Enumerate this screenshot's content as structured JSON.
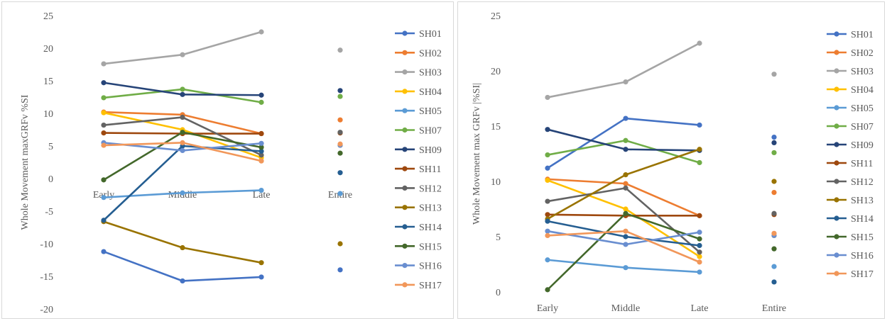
{
  "chart_data": [
    {
      "type": "line",
      "title": "",
      "ylabel": "Whole Movement maxGRFv %SI",
      "xlabel": "",
      "ylim": [
        -20,
        25
      ],
      "yticks": [
        25,
        20,
        15,
        10,
        5,
        0,
        -5,
        -10,
        -15,
        -20
      ],
      "categories": [
        "Early",
        "Middle",
        "Late",
        "Entire"
      ],
      "grid": false,
      "legend": "right",
      "series": [
        {
          "name": "SH01",
          "color": "#4472c4",
          "values": [
            -11.2,
            -15.7,
            -15.1,
            -14.0
          ]
        },
        {
          "name": "SH02",
          "color": "#ed7d31",
          "values": [
            10.2,
            9.8,
            6.9,
            9.0
          ]
        },
        {
          "name": "SH03",
          "color": "#a5a5a5",
          "values": [
            17.6,
            19.0,
            22.5,
            19.7
          ]
        },
        {
          "name": "SH04",
          "color": "#ffc000",
          "values": [
            10.1,
            7.5,
            3.2,
            5.1
          ]
        },
        {
          "name": "SH05",
          "color": "#5b9bd5",
          "values": [
            -2.9,
            -2.2,
            -1.8,
            -2.3
          ]
        },
        {
          "name": "SH07",
          "color": "#70ad47",
          "values": [
            12.4,
            13.7,
            11.7,
            12.6
          ]
        },
        {
          "name": "SH09",
          "color": "#264478",
          "values": [
            14.7,
            12.9,
            12.8,
            13.5
          ]
        },
        {
          "name": "SH11",
          "color": "#9e480e",
          "values": [
            7.0,
            6.9,
            6.9,
            7.0
          ]
        },
        {
          "name": "SH12",
          "color": "#636363",
          "values": [
            8.2,
            9.4,
            3.6,
            7.1
          ]
        },
        {
          "name": "SH13",
          "color": "#997300",
          "values": [
            -6.6,
            -10.6,
            -12.9,
            -10.0
          ]
        },
        {
          "name": "SH14",
          "color": "#255e91",
          "values": [
            -6.4,
            5.0,
            4.2,
            0.9
          ]
        },
        {
          "name": "SH15",
          "color": "#43682b",
          "values": [
            -0.2,
            7.1,
            4.8,
            3.9
          ]
        },
        {
          "name": "SH16",
          "color": "#698ed0",
          "values": [
            5.5,
            4.3,
            5.4,
            5.1
          ]
        },
        {
          "name": "SH17",
          "color": "#f1975a",
          "values": [
            5.1,
            5.5,
            2.7,
            5.3
          ]
        }
      ]
    },
    {
      "type": "line",
      "title": "",
      "ylabel": "Whole Movement max GRFv |%SI|",
      "xlabel": "",
      "ylim": [
        0,
        25
      ],
      "yticks": [
        25,
        20,
        15,
        10,
        5,
        0
      ],
      "categories": [
        "Early",
        "Middle",
        "Late",
        "Entire"
      ],
      "grid": false,
      "legend": "right",
      "series": [
        {
          "name": "SH01",
          "color": "#4472c4",
          "values": [
            11.2,
            15.7,
            15.1,
            14.0
          ]
        },
        {
          "name": "SH02",
          "color": "#ed7d31",
          "values": [
            10.2,
            9.8,
            6.9,
            9.0
          ]
        },
        {
          "name": "SH03",
          "color": "#a5a5a5",
          "values": [
            17.6,
            19.0,
            22.5,
            19.7
          ]
        },
        {
          "name": "SH04",
          "color": "#ffc000",
          "values": [
            10.1,
            7.5,
            3.2,
            5.1
          ]
        },
        {
          "name": "SH05",
          "color": "#5b9bd5",
          "values": [
            2.9,
            2.2,
            1.8,
            2.3
          ]
        },
        {
          "name": "SH07",
          "color": "#70ad47",
          "values": [
            12.4,
            13.7,
            11.7,
            12.6
          ]
        },
        {
          "name": "SH09",
          "color": "#264478",
          "values": [
            14.7,
            12.9,
            12.8,
            13.5
          ]
        },
        {
          "name": "SH11",
          "color": "#9e480e",
          "values": [
            7.0,
            6.9,
            6.9,
            7.0
          ]
        },
        {
          "name": "SH12",
          "color": "#636363",
          "values": [
            8.2,
            9.4,
            3.6,
            7.1
          ]
        },
        {
          "name": "SH13",
          "color": "#997300",
          "values": [
            6.6,
            10.6,
            12.9,
            10.0
          ]
        },
        {
          "name": "SH14",
          "color": "#255e91",
          "values": [
            6.4,
            5.0,
            4.2,
            0.9
          ]
        },
        {
          "name": "SH15",
          "color": "#43682b",
          "values": [
            0.2,
            7.1,
            4.8,
            3.9
          ]
        },
        {
          "name": "SH16",
          "color": "#698ed0",
          "values": [
            5.5,
            4.3,
            5.4,
            5.1
          ]
        },
        {
          "name": "SH17",
          "color": "#f1975a",
          "values": [
            5.1,
            5.5,
            2.7,
            5.3
          ]
        }
      ]
    }
  ]
}
